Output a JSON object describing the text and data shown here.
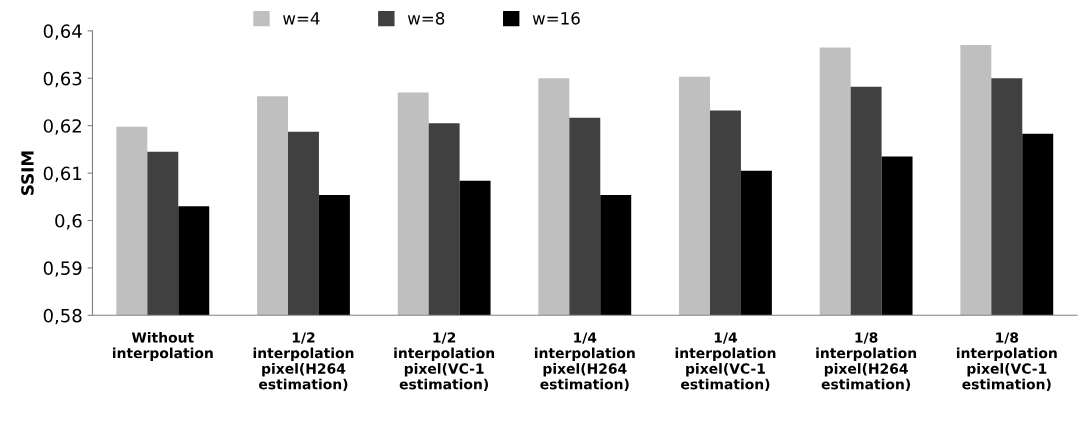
{
  "chart_data": {
    "type": "bar",
    "ylabel": "SSIM",
    "categories": [
      "Without\ninterpolation",
      "1/2\ninterpolation\npixel(H264\nestimation)",
      "1/2\ninterpolation\npixel(VC-1\nestimation)",
      "1/4\ninterpolation\npixel(H264\nestimation)",
      "1/4\ninterpolation\npixel(VC-1\nestimation)",
      "1/8\ninterpolation\npixel(H264\nestimation)",
      "1/8\ninterpolation\npixel(VC-1\nestimation)"
    ],
    "series": [
      {
        "name": "w=4",
        "color": "#bfbfbf",
        "values": [
          0.6198,
          0.6262,
          0.627,
          0.63,
          0.6303,
          0.6365,
          0.637
        ]
      },
      {
        "name": "w=8",
        "color": "#404040",
        "values": [
          0.6145,
          0.6187,
          0.6205,
          0.6217,
          0.6232,
          0.6282,
          0.63
        ]
      },
      {
        "name": "w=16",
        "color": "#000000",
        "values": [
          0.603,
          0.6054,
          0.6084,
          0.6054,
          0.6105,
          0.6135,
          0.6183
        ]
      }
    ],
    "ylim": [
      0.58,
      0.64
    ],
    "yticks": [
      {
        "value": 0.58,
        "label": "0,58"
      },
      {
        "value": 0.59,
        "label": "0,59"
      },
      {
        "value": 0.6,
        "label": "0,6"
      },
      {
        "value": 0.61,
        "label": "0,61"
      },
      {
        "value": 0.62,
        "label": "0,62"
      },
      {
        "value": 0.63,
        "label": "0,63"
      },
      {
        "value": 0.64,
        "label": "0,64"
      }
    ],
    "grid": false,
    "legend": "top"
  }
}
